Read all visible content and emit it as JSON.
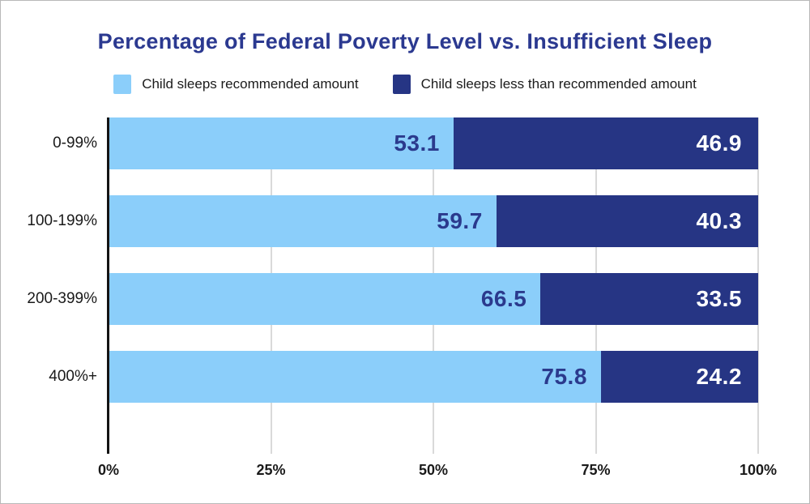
{
  "title": "Percentage of Federal Poverty Level vs. Insufficient Sleep",
  "legend": {
    "items": [
      {
        "label": "Child sleeps recommended amount",
        "color": "#8BCEFA"
      },
      {
        "label": "Child sleeps less than recommended amount",
        "color": "#263584"
      }
    ]
  },
  "chart_data": {
    "type": "bar",
    "orientation": "horizontal",
    "stacked": true,
    "title": "Percentage of Federal Poverty Level vs. Insufficient Sleep",
    "categories": [
      "0-99%",
      "100-199%",
      "200-399%",
      "400%+"
    ],
    "series": [
      {
        "name": "Child sleeps recommended amount",
        "color": "#8BCEFA",
        "label_color": "#2B3A8D",
        "values": [
          53.1,
          59.7,
          66.5,
          75.8
        ]
      },
      {
        "name": "Child sleeps less than recommended amount",
        "color": "#263584",
        "label_color": "#FFFFFF",
        "values": [
          46.9,
          40.3,
          33.5,
          24.2
        ]
      }
    ],
    "x_ticks": [
      {
        "label": "0%",
        "value": 0
      },
      {
        "label": "25%",
        "value": 25
      },
      {
        "label": "50%",
        "value": 50
      },
      {
        "label": "75%",
        "value": 75
      },
      {
        "label": "100%",
        "value": 100
      }
    ],
    "xlim": [
      0,
      100
    ],
    "grid": true,
    "legend_position": "top",
    "value_format": "one_decimal"
  },
  "colors": {
    "title": "#2B3990",
    "axis_line": "#141414",
    "gridline": "#D9D9D9",
    "tick_label": "#1A1A1A",
    "category_label": "#1A1A1A",
    "background": "#FFFFFF"
  }
}
